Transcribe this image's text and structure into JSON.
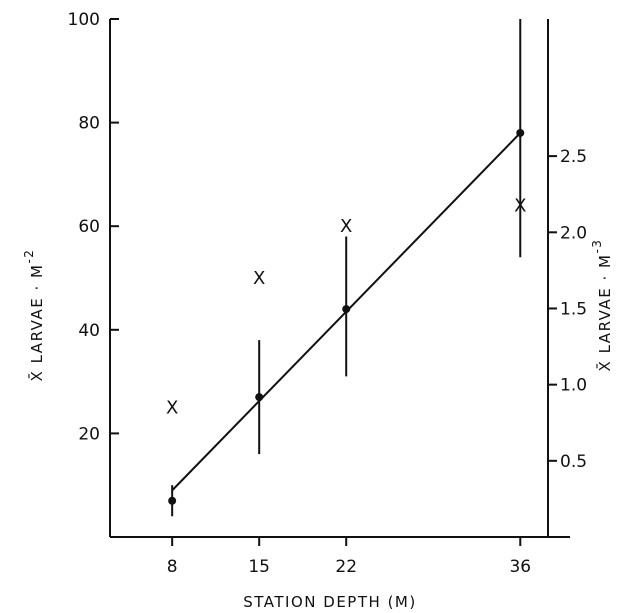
{
  "chart_data": {
    "type": "scatter",
    "xlabel": "STATION DEPTH (M)",
    "ylabel": "X̄ LARVAE · M",
    "ylabel_superscript": "-2",
    "y2label": "X̄ LARVAE · M",
    "y2label_superscript": "-3",
    "xlim": [
      3,
      40
    ],
    "ylim": [
      0,
      100
    ],
    "y2lim": [
      0,
      3.4
    ],
    "xticks": [
      8,
      15,
      22,
      36
    ],
    "xtick_labels": [
      "8",
      "15",
      "22",
      "36"
    ],
    "yticks": [
      20,
      40,
      60,
      80,
      100
    ],
    "ytick_labels": [
      "20",
      "40",
      "60",
      "80",
      "100"
    ],
    "y2ticks": [
      0.5,
      1.0,
      1.5,
      2.0,
      2.5
    ],
    "y2tick_labels": [
      "0.5",
      "1.0",
      "1.5",
      "2.0",
      "2.5"
    ],
    "series": [
      {
        "marker": "dot-with-error-bar",
        "axis": "left",
        "x": [
          8,
          15,
          22,
          36
        ],
        "y": [
          7,
          27,
          44,
          78
        ],
        "error_low": [
          4,
          16,
          31,
          54
        ],
        "error_high": [
          10,
          38,
          58,
          100
        ]
      },
      {
        "marker": "x",
        "marker_label": "X",
        "axis": "left",
        "x": [
          8,
          15,
          22,
          36
        ],
        "y": [
          25,
          50,
          60,
          64
        ]
      }
    ],
    "trend_line": {
      "x": [
        8,
        36
      ],
      "y": [
        9,
        78
      ]
    },
    "grid": false,
    "legend": "none"
  }
}
